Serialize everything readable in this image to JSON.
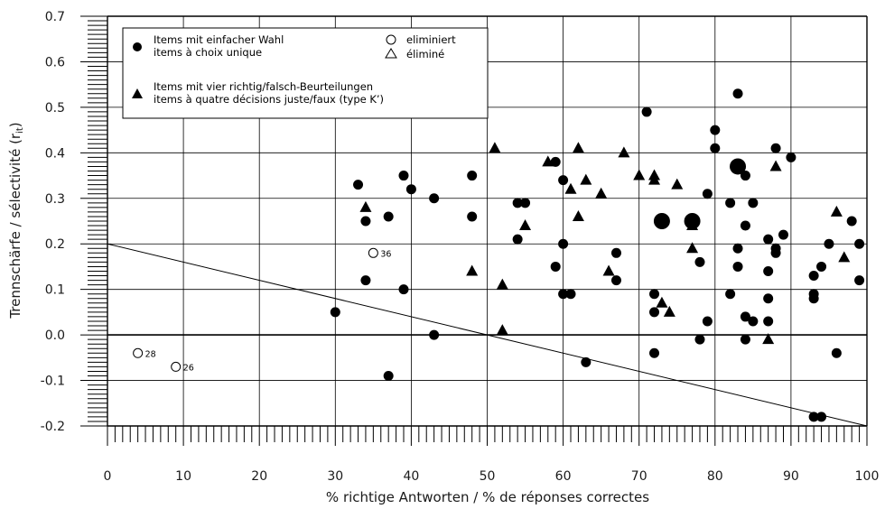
{
  "chart_data": {
    "type": "scatter",
    "xlabel": "% richtige Antworten / % de réponses correctes",
    "ylabel_prefix": "Trennschärfe / sélectivité (r",
    "ylabel_sub": "it",
    "ylabel_suffix": ")",
    "xlim": [
      0,
      100
    ],
    "ylim": [
      -0.2,
      0.7
    ],
    "xticks": [
      0,
      10,
      20,
      30,
      40,
      50,
      60,
      70,
      80,
      90,
      100
    ],
    "xtick_labels": [
      "0",
      "10",
      "20",
      "30",
      "40",
      "50",
      "60",
      "70",
      "80",
      "90",
      "100"
    ],
    "yticks": [
      -0.2,
      -0.1,
      0.0,
      0.1,
      0.2,
      0.3,
      0.4,
      0.5,
      0.6,
      0.7
    ],
    "ytick_labels": [
      "-0.2",
      "-0.1",
      "0.0",
      "0.1",
      "0.2",
      "0.3",
      "0.4",
      "0.5",
      "0.6",
      "0.7"
    ],
    "grid": true,
    "legend_position": "top-left",
    "legend": {
      "filled_circle_line1": "Items mit einfacher Wahl",
      "filled_circle_line2": "items à choix unique",
      "open_circle": "eliminiert",
      "open_triangle": "éliminé",
      "filled_triangle_line1": "Items mit vier richtig/falsch-Beurteilungen",
      "filled_triangle_line2": "items à quatre décisions juste/faux (type K’)"
    },
    "reference_line": {
      "x": [
        0,
        100
      ],
      "y": [
        0.2,
        -0.2
      ]
    },
    "series": [
      {
        "marker": "filled-circle",
        "points": [
          [
            30,
            0.05
          ],
          [
            33,
            0.33
          ],
          [
            34,
            0.25
          ],
          [
            34,
            0.12
          ],
          [
            37,
            0.26
          ],
          [
            37,
            -0.09
          ],
          [
            39,
            0.35
          ],
          [
            39,
            0.1
          ],
          [
            40,
            0.32
          ],
          [
            43,
            0.3
          ],
          [
            43,
            0.0
          ],
          [
            48,
            0.35
          ],
          [
            48,
            0.26
          ],
          [
            54,
            0.29
          ],
          [
            54,
            0.21
          ],
          [
            55,
            0.29
          ],
          [
            59,
            0.38
          ],
          [
            59,
            0.15
          ],
          [
            60,
            0.34
          ],
          [
            60,
            0.2
          ],
          [
            60,
            0.09
          ],
          [
            61,
            0.09
          ],
          [
            63,
            -0.06
          ],
          [
            67,
            0.18
          ],
          [
            67,
            0.12
          ],
          [
            71,
            0.49
          ],
          [
            72,
            0.09
          ],
          [
            72,
            0.05
          ],
          [
            72,
            -0.04
          ],
          [
            78,
            0.16
          ],
          [
            78,
            -0.01
          ],
          [
            79,
            0.31
          ],
          [
            79,
            0.03
          ],
          [
            80,
            0.45
          ],
          [
            80,
            0.41
          ],
          [
            82,
            0.29
          ],
          [
            82,
            0.09
          ],
          [
            83,
            0.53
          ],
          [
            83,
            0.19
          ],
          [
            83,
            0.15
          ],
          [
            84,
            0.35
          ],
          [
            84,
            0.24
          ],
          [
            84,
            0.04
          ],
          [
            84,
            -0.01
          ],
          [
            85,
            0.29
          ],
          [
            85,
            0.03
          ],
          [
            87,
            0.21
          ],
          [
            87,
            0.14
          ],
          [
            87,
            0.08
          ],
          [
            87,
            0.03
          ],
          [
            88,
            0.41
          ],
          [
            88,
            0.19
          ],
          [
            88,
            0.18
          ],
          [
            89,
            0.22
          ],
          [
            90,
            0.39
          ],
          [
            93,
            0.13
          ],
          [
            93,
            0.09
          ],
          [
            93,
            0.08
          ],
          [
            93,
            -0.18
          ],
          [
            94,
            0.15
          ],
          [
            94,
            -0.18
          ],
          [
            95,
            0.2
          ],
          [
            96,
            -0.04
          ],
          [
            98,
            0.25
          ],
          [
            99,
            0.2
          ],
          [
            99,
            0.12
          ]
        ]
      },
      {
        "marker": "filled-circle-large",
        "points": [
          [
            73,
            0.25
          ],
          [
            77,
            0.25
          ],
          [
            83,
            0.37
          ]
        ]
      },
      {
        "marker": "filled-triangle",
        "points": [
          [
            34,
            0.28
          ],
          [
            48,
            0.14
          ],
          [
            51,
            0.41
          ],
          [
            52,
            0.11
          ],
          [
            52,
            0.01
          ],
          [
            55,
            0.24
          ],
          [
            58,
            0.38
          ],
          [
            61,
            0.32
          ],
          [
            62,
            0.41
          ],
          [
            62,
            0.26
          ],
          [
            63,
            0.34
          ],
          [
            65,
            0.31
          ],
          [
            66,
            0.14
          ],
          [
            68,
            0.4
          ],
          [
            70,
            0.35
          ],
          [
            72,
            0.35
          ],
          [
            72,
            0.34
          ],
          [
            73,
            0.07
          ],
          [
            74,
            0.05
          ],
          [
            75,
            0.33
          ],
          [
            77,
            0.24
          ],
          [
            77,
            0.19
          ],
          [
            87,
            -0.01
          ],
          [
            88,
            0.37
          ],
          [
            96,
            0.27
          ],
          [
            97,
            0.17
          ]
        ]
      },
      {
        "marker": "open-circle",
        "points": [
          [
            4,
            -0.04
          ],
          [
            9,
            -0.07
          ],
          [
            35,
            0.18
          ]
        ],
        "labels": [
          "28",
          "26",
          "36"
        ]
      }
    ]
  }
}
